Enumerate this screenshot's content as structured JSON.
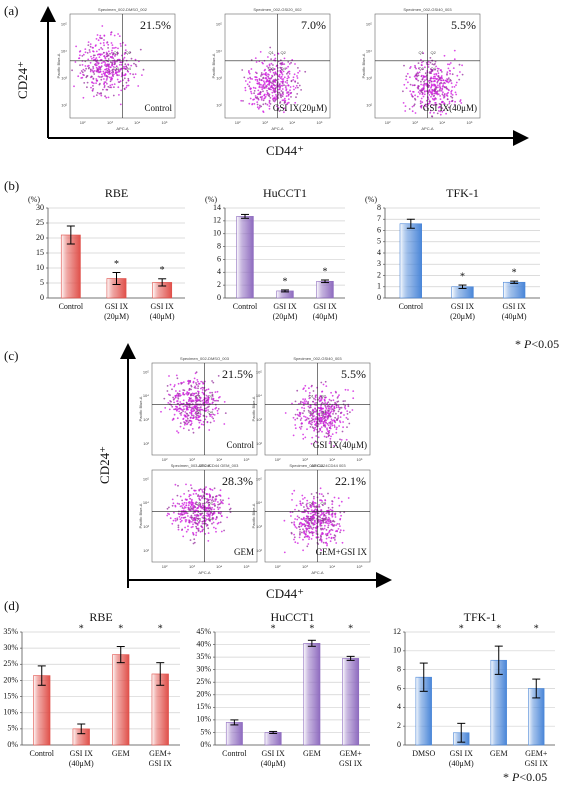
{
  "panel_labels": [
    "(a)",
    "(b)",
    "(c)",
    "(d)"
  ],
  "flow": {
    "y_marker": "CD24⁺",
    "x_marker": "CD44⁺",
    "y_axis": "Pacific Blue-A",
    "x_axis": "APC-A",
    "ticks": [
      "10²",
      "10³",
      "10⁴",
      "10⁵"
    ],
    "quadrants": [
      "Q1",
      "Q2",
      "Q3",
      "Q4"
    ],
    "a": [
      {
        "specimen": "Specimen_002-DMSO_002",
        "percent": "21.5%",
        "label": "Control"
      },
      {
        "specimen": "Specimen_002-GSI20_002",
        "percent": "7.0%",
        "label": "GSI IX(20μM)"
      },
      {
        "specimen": "Specimen_002-GSI40_003",
        "percent": "5.5%",
        "label": "GSI IX(40μM)"
      }
    ],
    "c": [
      {
        "specimen": "Specimen_002-DMSO_003",
        "percent": "21.5%",
        "label": "Control"
      },
      {
        "specimen": "Specimen_002-GSI40_003",
        "percent": "5.5%",
        "label": "GSI IX(40μM)"
      },
      {
        "specimen": "Specimen_003-CD24CD44 GEM_003",
        "percent": "28.3%",
        "label": "GEM"
      },
      {
        "specimen": "Specimen_003-CD24CD44 003",
        "percent": "22.1%",
        "label": "GEM+GSI IX"
      }
    ]
  },
  "footnote": {
    "star": "*",
    "p": "P",
    "rest": "<0.05"
  },
  "chart_data": [
    {
      "type": "bar",
      "title": "RBE",
      "ylabel": "(%)",
      "categories": [
        "Control",
        "GSI IX(20μM)",
        "GSI IX(40μM)"
      ],
      "values": [
        21,
        6.5,
        5.2
      ],
      "errors": [
        3,
        2,
        1.2
      ],
      "significance": [
        null,
        "*",
        "*"
      ],
      "ylim": [
        0,
        30
      ],
      "yticks": [
        0,
        5,
        10,
        15,
        20,
        25,
        30
      ],
      "color": "#e0504a",
      "grid": true
    },
    {
      "type": "bar",
      "title": "HuCCT1",
      "ylabel": "(%)",
      "categories": [
        "Control",
        "GSI IX(20μM)",
        "GSI IX(40μM)"
      ],
      "values": [
        12.7,
        1.1,
        2.6
      ],
      "errors": [
        0.3,
        0.15,
        0.2
      ],
      "significance": [
        null,
        "*",
        "*"
      ],
      "ylim": [
        0,
        14
      ],
      "yticks": [
        0,
        2,
        4,
        6,
        8,
        10,
        12,
        14
      ],
      "color": "#8e6bbf",
      "grid": true
    },
    {
      "type": "bar",
      "title": "TFK-1",
      "ylabel": "(%)",
      "categories": [
        "Control",
        "GSI IX(20μM)",
        "GSI IX(40μM)"
      ],
      "values": [
        6.6,
        1.0,
        1.4
      ],
      "errors": [
        0.4,
        0.15,
        0.1
      ],
      "significance": [
        null,
        "*",
        "*"
      ],
      "ylim": [
        0,
        8
      ],
      "yticks": [
        0,
        1,
        2,
        3,
        4,
        5,
        6,
        7,
        8
      ],
      "color": "#4a86d8",
      "grid": true
    },
    {
      "type": "bar",
      "title": "RBE",
      "categories": [
        "Control",
        "GSI IX(40μM)",
        "GEM",
        "GEM+GSI IX"
      ],
      "values": [
        21.5,
        5,
        28,
        22
      ],
      "errors": [
        3,
        1.5,
        2.5,
        3.5
      ],
      "significance": [
        null,
        "*",
        "*",
        "*"
      ],
      "ylim": [
        0,
        35
      ],
      "yticks": [
        {
          "value": 0,
          "label": "0%"
        },
        {
          "value": 5,
          "label": "5%"
        },
        {
          "value": 10,
          "label": "10%"
        },
        {
          "value": 15,
          "label": "15%"
        },
        {
          "value": 20,
          "label": "20%"
        },
        {
          "value": 25,
          "label": "25%"
        },
        {
          "value": 30,
          "label": "30%"
        },
        {
          "value": 35,
          "label": "35%"
        }
      ],
      "color": "#e0504a",
      "grid": true
    },
    {
      "type": "bar",
      "title": "HuCCT1",
      "categories": [
        "Control",
        "GSI IX(40μM)",
        "GEM",
        "GEM+GSI IX"
      ],
      "values": [
        9,
        5,
        40.5,
        34.5
      ],
      "errors": [
        1,
        0.4,
        1.2,
        0.8
      ],
      "significance": [
        null,
        "*",
        "*",
        "*"
      ],
      "ylim": [
        0,
        45
      ],
      "yticks": [
        {
          "value": 0,
          "label": "0%"
        },
        {
          "value": 5,
          "label": "5%"
        },
        {
          "value": 10,
          "label": "10%"
        },
        {
          "value": 15,
          "label": "15%"
        },
        {
          "value": 20,
          "label": "20%"
        },
        {
          "value": 25,
          "label": "25%"
        },
        {
          "value": 30,
          "label": "30%"
        },
        {
          "value": 35,
          "label": "35%"
        },
        {
          "value": 40,
          "label": "40%"
        },
        {
          "value": 45,
          "label": "45%"
        }
      ],
      "color": "#8e6bbf",
      "grid": true
    },
    {
      "type": "bar",
      "title": "TFK-1",
      "categories": [
        "DMSO",
        "GSI IX(40μM)",
        "GEM",
        "GEM+GSI IX"
      ],
      "values": [
        7.2,
        1.3,
        9,
        6
      ],
      "errors": [
        1.5,
        1,
        1.5,
        1
      ],
      "significance": [
        null,
        "*",
        "*",
        "*"
      ],
      "ylim": [
        0,
        12
      ],
      "yticks": [
        0,
        2,
        4,
        6,
        8,
        10,
        12
      ],
      "color": "#4a86d8",
      "grid": true
    }
  ]
}
